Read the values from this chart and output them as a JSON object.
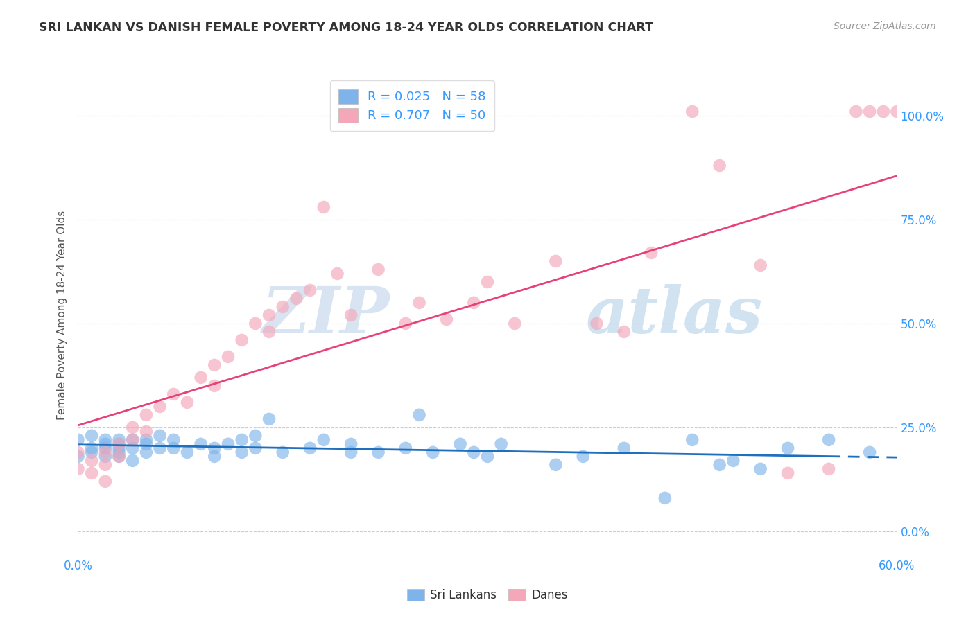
{
  "title": "SRI LANKAN VS DANISH FEMALE POVERTY AMONG 18-24 YEAR OLDS CORRELATION CHART",
  "source": "Source: ZipAtlas.com",
  "ylabel": "Female Poverty Among 18-24 Year Olds",
  "xlim": [
    0.0,
    0.6
  ],
  "ylim": [
    -0.06,
    1.1
  ],
  "xticks": [
    0.0,
    0.1,
    0.2,
    0.3,
    0.4,
    0.5,
    0.6
  ],
  "xtick_labels": [
    "0.0%",
    "",
    "",
    "",
    "",
    "",
    "60.0%"
  ],
  "yticks": [
    0.0,
    0.25,
    0.5,
    0.75,
    1.0
  ],
  "ytick_labels_right": [
    "0.0%",
    "25.0%",
    "50.0%",
    "75.0%",
    "100.0%"
  ],
  "sri_lankan_color": "#7EB4EA",
  "danish_color": "#F4A7B9",
  "trendline_sri_color": "#1F6FBF",
  "trendline_danish_color": "#E8417A",
  "R_sri": 0.025,
  "N_sri": 58,
  "R_danish": 0.707,
  "N_danish": 50,
  "watermark_zip": "ZIP",
  "watermark_atlas": "atlas",
  "legend_labels": [
    "Sri Lankans",
    "Danes"
  ],
  "sri_x": [
    0.0,
    0.0,
    0.01,
    0.01,
    0.01,
    0.02,
    0.02,
    0.02,
    0.02,
    0.03,
    0.03,
    0.03,
    0.03,
    0.03,
    0.04,
    0.04,
    0.04,
    0.05,
    0.05,
    0.05,
    0.06,
    0.06,
    0.07,
    0.07,
    0.08,
    0.09,
    0.1,
    0.1,
    0.11,
    0.12,
    0.12,
    0.13,
    0.13,
    0.14,
    0.15,
    0.17,
    0.18,
    0.2,
    0.2,
    0.22,
    0.24,
    0.25,
    0.26,
    0.28,
    0.29,
    0.3,
    0.31,
    0.35,
    0.37,
    0.4,
    0.43,
    0.45,
    0.47,
    0.48,
    0.5,
    0.52,
    0.55,
    0.58
  ],
  "sri_y": [
    0.18,
    0.22,
    0.2,
    0.19,
    0.23,
    0.21,
    0.18,
    0.2,
    0.22,
    0.2,
    0.19,
    0.22,
    0.21,
    0.18,
    0.2,
    0.22,
    0.17,
    0.22,
    0.19,
    0.21,
    0.2,
    0.23,
    0.22,
    0.2,
    0.19,
    0.21,
    0.18,
    0.2,
    0.21,
    0.19,
    0.22,
    0.2,
    0.23,
    0.27,
    0.19,
    0.2,
    0.22,
    0.21,
    0.19,
    0.19,
    0.2,
    0.28,
    0.19,
    0.21,
    0.19,
    0.18,
    0.21,
    0.16,
    0.18,
    0.2,
    0.08,
    0.22,
    0.16,
    0.17,
    0.15,
    0.2,
    0.22,
    0.19
  ],
  "danish_x": [
    0.0,
    0.0,
    0.01,
    0.01,
    0.02,
    0.02,
    0.02,
    0.03,
    0.03,
    0.04,
    0.04,
    0.05,
    0.05,
    0.06,
    0.07,
    0.08,
    0.09,
    0.1,
    0.1,
    0.11,
    0.12,
    0.13,
    0.14,
    0.14,
    0.15,
    0.16,
    0.17,
    0.18,
    0.19,
    0.2,
    0.22,
    0.24,
    0.25,
    0.27,
    0.29,
    0.3,
    0.32,
    0.35,
    0.38,
    0.4,
    0.42,
    0.45,
    0.47,
    0.5,
    0.52,
    0.55,
    0.57,
    0.58,
    0.59,
    0.6
  ],
  "danish_y": [
    0.15,
    0.19,
    0.14,
    0.17,
    0.16,
    0.19,
    0.12,
    0.18,
    0.21,
    0.22,
    0.25,
    0.24,
    0.28,
    0.3,
    0.33,
    0.31,
    0.37,
    0.35,
    0.4,
    0.42,
    0.46,
    0.5,
    0.48,
    0.52,
    0.54,
    0.56,
    0.58,
    0.78,
    0.62,
    0.52,
    0.63,
    0.5,
    0.55,
    0.51,
    0.55,
    0.6,
    0.5,
    0.65,
    0.5,
    0.48,
    0.67,
    1.01,
    0.88,
    0.64,
    0.14,
    0.15,
    1.01,
    1.01,
    1.01,
    1.01
  ]
}
